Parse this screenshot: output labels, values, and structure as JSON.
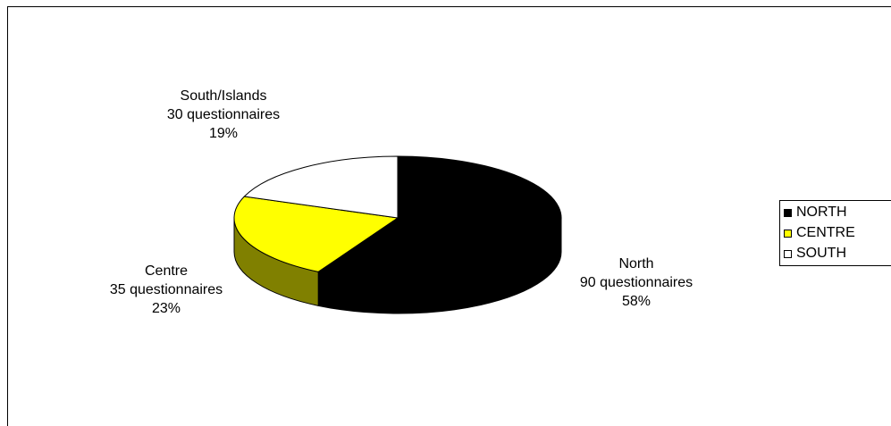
{
  "chart_data": {
    "type": "pie",
    "title": "",
    "categories": [
      "NORTH",
      "CENTRE",
      "SOUTH"
    ],
    "values": [
      90,
      35,
      30
    ],
    "percentages": [
      58,
      23,
      19
    ],
    "colors": [
      "#000000",
      "#ffff00",
      "#ffffff"
    ],
    "side_colors": [
      "#000000",
      "#808000",
      "#ffffff"
    ],
    "data_labels": [
      {
        "name": "North",
        "count": "90 questionnaires",
        "pct": "58%"
      },
      {
        "name": "Centre",
        "count": "35 questionnaires",
        "pct": "23%"
      },
      {
        "name": "South/Islands",
        "count": "30 questionnaires",
        "pct": "19%"
      }
    ],
    "legend_position": "right",
    "style": "3d"
  }
}
